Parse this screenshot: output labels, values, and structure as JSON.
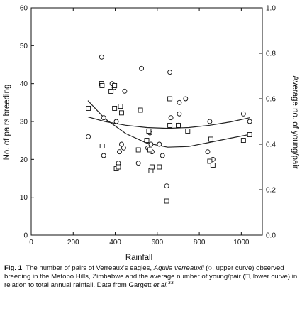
{
  "chart_data": {
    "type": "scatter",
    "xlabel": "Rainfall",
    "ylabel_left": "No. of pairs breeding",
    "ylabel_right": "Average no. of young/pair",
    "xlim": [
      0,
      1100
    ],
    "ylim_left": [
      0,
      60
    ],
    "ylim_right": [
      0,
      1.0
    ],
    "x_ticks": [
      "0",
      "200",
      "400",
      "600",
      "800",
      "1000"
    ],
    "y_ticks_left": [
      "0",
      "10",
      "20",
      "30",
      "40",
      "50",
      "60"
    ],
    "y_ticks_right": [
      "0.0",
      "0.2",
      "0.4",
      "0.6",
      "0.8",
      "1.0"
    ],
    "grid": false,
    "series": [
      {
        "marker": "circle",
        "axis": "left",
        "points": [
          [
            272,
            26
          ],
          [
            335,
            47
          ],
          [
            345,
            31
          ],
          [
            345,
            21
          ],
          [
            385,
            40
          ],
          [
            395,
            39
          ],
          [
            405,
            30
          ],
          [
            415,
            19
          ],
          [
            420,
            22
          ],
          [
            430,
            24
          ],
          [
            440,
            23
          ],
          [
            445,
            38
          ],
          [
            510,
            19
          ],
          [
            525,
            44
          ],
          [
            550,
            25
          ],
          [
            555,
            23
          ],
          [
            565,
            27
          ],
          [
            570,
            24
          ],
          [
            575,
            22
          ],
          [
            610,
            24
          ],
          [
            625,
            21
          ],
          [
            645,
            13
          ],
          [
            660,
            43
          ],
          [
            665,
            31
          ],
          [
            700,
            29
          ],
          [
            705,
            35
          ],
          [
            705,
            32
          ],
          [
            735,
            36
          ],
          [
            840,
            22
          ],
          [
            850,
            30
          ],
          [
            865,
            20
          ],
          [
            1010,
            32
          ],
          [
            1040,
            30
          ]
        ]
      },
      {
        "marker": "square",
        "axis": "right",
        "points": [
          [
            272,
            0.558
          ],
          [
            335,
            0.667
          ],
          [
            337,
            0.658
          ],
          [
            338,
            0.392
          ],
          [
            380,
            0.633
          ],
          [
            397,
            0.658
          ],
          [
            397,
            0.558
          ],
          [
            405,
            0.292
          ],
          [
            415,
            0.3
          ],
          [
            425,
            0.567
          ],
          [
            430,
            0.538
          ],
          [
            510,
            0.375
          ],
          [
            520,
            0.55
          ],
          [
            550,
            0.417
          ],
          [
            560,
            0.458
          ],
          [
            565,
            0.375
          ],
          [
            570,
            0.283
          ],
          [
            575,
            0.3
          ],
          [
            610,
            0.3
          ],
          [
            645,
            0.15
          ],
          [
            660,
            0.6
          ],
          [
            660,
            0.483
          ],
          [
            700,
            0.483
          ],
          [
            745,
            0.458
          ],
          [
            850,
            0.325
          ],
          [
            855,
            0.422
          ],
          [
            865,
            0.308
          ],
          [
            1010,
            0.417
          ],
          [
            1040,
            0.442
          ]
        ]
      }
    ],
    "curves": [
      {
        "label": "upper curve",
        "axis": "left",
        "points": [
          [
            270,
            31.2
          ],
          [
            350,
            30.0
          ],
          [
            450,
            29.0
          ],
          [
            550,
            28.4
          ],
          [
            650,
            28.2
          ],
          [
            750,
            28.4
          ],
          [
            850,
            29.0
          ],
          [
            950,
            29.9
          ],
          [
            1040,
            31.0
          ]
        ]
      },
      {
        "label": "lower curve",
        "axis": "right",
        "points": [
          [
            270,
            0.592
          ],
          [
            350,
            0.513
          ],
          [
            450,
            0.447
          ],
          [
            550,
            0.405
          ],
          [
            650,
            0.387
          ],
          [
            750,
            0.39
          ],
          [
            850,
            0.408
          ],
          [
            950,
            0.427
          ],
          [
            1040,
            0.443
          ]
        ]
      }
    ]
  },
  "caption": {
    "fig_label": "Fig. 1",
    "text_1": ". The number of pairs of Verreaux's eagles, ",
    "species": "Aquila verreauxii",
    "text_2": " (○, upper curve) observed breeding in the Matobo Hills, Zimbabwe and the average number of young/pair (□, lower curve) in relation to total annual rainfall. Data from Gargett ",
    "et_al": "et al.",
    "ref": "33"
  }
}
